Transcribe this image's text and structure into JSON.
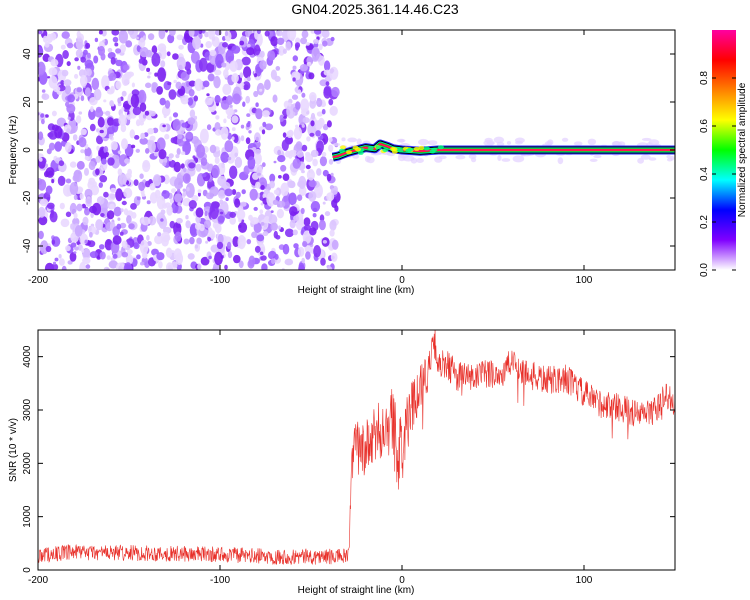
{
  "title": "GN04.2025.361.14.46.C23",
  "chart_data": [
    {
      "type": "heatmap",
      "name": "spectrogram",
      "xlabel": "Height of straight line (km)",
      "ylabel": "Frequency (Hz)",
      "xlim": [
        -200,
        150
      ],
      "ylim": [
        -50,
        50
      ],
      "xticks": [
        -200,
        -100,
        0,
        100
      ],
      "yticks": [
        -40,
        -20,
        0,
        20,
        40
      ],
      "noise_region_x": [
        -200,
        -38
      ],
      "signal_line": {
        "x_start": -38,
        "x_end": 150,
        "frequency": 0,
        "wobble_points": [
          [
            -38,
            -3
          ],
          [
            -35,
            -2.5
          ],
          [
            -30,
            -1
          ],
          [
            -25,
            0
          ],
          [
            -20,
            1
          ],
          [
            -15,
            0.5
          ],
          [
            -12,
            2.5
          ],
          [
            -8,
            1.5
          ],
          [
            -5,
            0.5
          ],
          [
            0,
            0
          ],
          [
            10,
            -0.5
          ],
          [
            20,
            0
          ],
          [
            150,
            0
          ]
        ]
      },
      "colorbar": {
        "label": "Normalized spectral amplitude",
        "range": [
          0.0,
          1.0
        ],
        "ticks": [
          "0.0",
          "0.2",
          "0.4",
          "0.6",
          "0.8"
        ],
        "tick_values": [
          0.0,
          0.2,
          0.4,
          0.6,
          0.8
        ],
        "colormap": [
          "#ffffff",
          "#8000ff",
          "#0000ff",
          "#00ffff",
          "#00ff00",
          "#ffff00",
          "#ff8000",
          "#ff0000",
          "#ff00a0"
        ]
      }
    },
    {
      "type": "line",
      "name": "snr",
      "xlabel": "Height of straight line (km)",
      "ylabel": "SNR (10 * v/v)",
      "xlim": [
        -200,
        150
      ],
      "ylim": [
        0,
        4500
      ],
      "xticks": [
        -200,
        -100,
        0,
        100
      ],
      "yticks": [
        0,
        1000,
        2000,
        3000,
        4000
      ],
      "color": "#e8302a",
      "envelope": {
        "x": [
          -200,
          -180,
          -150,
          -120,
          -100,
          -80,
          -60,
          -40,
          -29,
          -28,
          -26,
          -20,
          -10,
          -5,
          -2,
          0,
          5,
          10,
          15,
          18,
          20,
          25,
          30,
          40,
          50,
          55,
          60,
          70,
          80,
          90,
          100,
          110,
          120,
          130,
          140,
          145,
          150
        ],
        "y": [
          280,
          330,
          320,
          300,
          290,
          260,
          250,
          250,
          260,
          1900,
          2300,
          2250,
          2700,
          2800,
          2100,
          2300,
          3000,
          3500,
          3750,
          4300,
          3800,
          3850,
          3650,
          3600,
          3700,
          3650,
          3900,
          3650,
          3550,
          3600,
          3300,
          3100,
          3050,
          2900,
          3000,
          3300,
          3100
        ]
      },
      "noise_amplitude": {
        "x": [
          -200,
          -29,
          -28,
          -10,
          0,
          5,
          20,
          60,
          150
        ],
        "y": [
          150,
          150,
          500,
          600,
          700,
          500,
          300,
          280,
          260
        ]
      }
    }
  ]
}
